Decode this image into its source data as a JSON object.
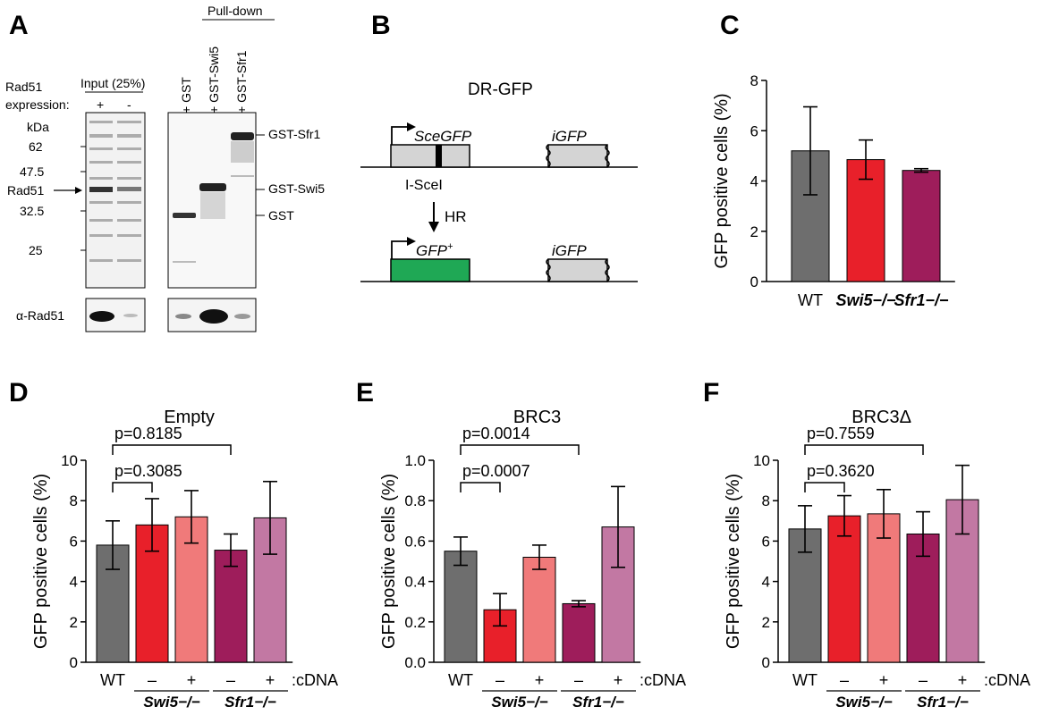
{
  "panels": {
    "A": {
      "letter": "A",
      "pulldown_header": "Pull-down",
      "input_header": "Input (25%)",
      "rad51_expression": [
        "Rad51",
        "expression:"
      ],
      "expression_signs": [
        "+",
        "-"
      ],
      "lane_labels": [
        "+ GST",
        "+ GST-Swi5",
        "+ GST-Sfr1"
      ],
      "kda_label": "kDa",
      "markers": [
        "62",
        "47.5",
        "32.5",
        "25"
      ],
      "rad51_arrow_label": "Rad51",
      "band_labels": [
        "GST-Sfr1",
        "GST-Swi5",
        "GST"
      ],
      "blot_label": "α-Rad51"
    },
    "B": {
      "letter": "B",
      "title": "DR-GFP",
      "sce_gfp": "SceGFP",
      "igfp": "iGFP",
      "isce": "I-SceI",
      "hr": "HR",
      "gfp_plus": "GFP",
      "gfp_plus_sup": "+",
      "colors": {
        "gfp_box": "#1fa855",
        "grey_box": "#d4d4d4"
      }
    },
    "C": {
      "letter": "C"
    },
    "D": {
      "letter": "D"
    },
    "E": {
      "letter": "E"
    },
    "F": {
      "letter": "F"
    }
  },
  "colors": {
    "WT": "#6e6e6e",
    "Swi5-": "#e8202a",
    "Swi5+": "#f07a7a",
    "Sfr1-": "#9e1d5b",
    "Sfr1+": "#c278a3"
  },
  "chart_data": [
    {
      "panel": "C",
      "type": "bar",
      "title": "",
      "ylabel": "GFP positive cells (%)",
      "ylim": [
        0,
        8
      ],
      "yticks": [
        "0",
        "2",
        "4",
        "6",
        "8"
      ],
      "categories": [
        "WT",
        "Swi5−/−",
        "Sfr1−/−"
      ],
      "category_italic": [
        false,
        true,
        true
      ],
      "values": [
        5.2,
        4.85,
        4.42
      ],
      "errors": [
        1.75,
        0.78,
        0.07
      ],
      "colors": [
        "#6e6e6e",
        "#e8202a",
        "#9e1d5b"
      ]
    },
    {
      "panel": "D",
      "type": "bar",
      "title": "Empty",
      "ylabel": "GFP positive cells (%)",
      "ylim": [
        0,
        10
      ],
      "yticks": [
        "0",
        "2",
        "4",
        "6",
        "8",
        "10"
      ],
      "categories": [
        "WT",
        "–",
        "+",
        "–",
        "+"
      ],
      "groups": [
        "Swi5−/−",
        "Sfr1−/−"
      ],
      "cdna_label": ":cDNA",
      "values": [
        5.8,
        6.8,
        7.2,
        5.55,
        7.15
      ],
      "errors": [
        1.2,
        1.3,
        1.3,
        0.8,
        1.8
      ],
      "colors": [
        "#6e6e6e",
        "#e8202a",
        "#f07a7a",
        "#9e1d5b",
        "#c278a3"
      ],
      "pvalues": [
        {
          "text": "p=0.3085",
          "from": 0,
          "to": 1
        },
        {
          "text": "p=0.8185",
          "from": 0,
          "to": 3
        }
      ]
    },
    {
      "panel": "E",
      "type": "bar",
      "title": "BRC3",
      "ylabel": "GFP positive cells (%)",
      "ylim": [
        0,
        1.0
      ],
      "yticks": [
        "0.0",
        "0.2",
        "0.4",
        "0.6",
        "0.8",
        "1.0"
      ],
      "categories": [
        "WT",
        "–",
        "+",
        "–",
        "+"
      ],
      "groups": [
        "Swi5−/−",
        "Sfr1−/−"
      ],
      "cdna_label": ":cDNA",
      "values": [
        0.55,
        0.26,
        0.52,
        0.29,
        0.67
      ],
      "errors": [
        0.07,
        0.08,
        0.06,
        0.015,
        0.2
      ],
      "colors": [
        "#6e6e6e",
        "#e8202a",
        "#f07a7a",
        "#9e1d5b",
        "#c278a3"
      ],
      "pvalues": [
        {
          "text": "p=0.0007",
          "from": 0,
          "to": 1
        },
        {
          "text": "p=0.0014",
          "from": 0,
          "to": 3
        }
      ]
    },
    {
      "panel": "F",
      "type": "bar",
      "title": "BRC3Δ",
      "ylabel": "GFP positive cells (%)",
      "ylim": [
        0,
        10
      ],
      "yticks": [
        "0",
        "2",
        "4",
        "6",
        "8",
        "10"
      ],
      "categories": [
        "WT",
        "–",
        "+",
        "–",
        "+"
      ],
      "groups": [
        "Swi5−/−",
        "Sfr1−/−"
      ],
      "cdna_label": ":cDNA",
      "values": [
        6.6,
        7.25,
        7.35,
        6.35,
        8.05
      ],
      "errors": [
        1.15,
        1.0,
        1.2,
        1.1,
        1.7
      ],
      "colors": [
        "#6e6e6e",
        "#e8202a",
        "#f07a7a",
        "#9e1d5b",
        "#c278a3"
      ],
      "pvalues": [
        {
          "text": "p=0.3620",
          "from": 0,
          "to": 1
        },
        {
          "text": "p=0.7559",
          "from": 0,
          "to": 3
        }
      ]
    }
  ]
}
